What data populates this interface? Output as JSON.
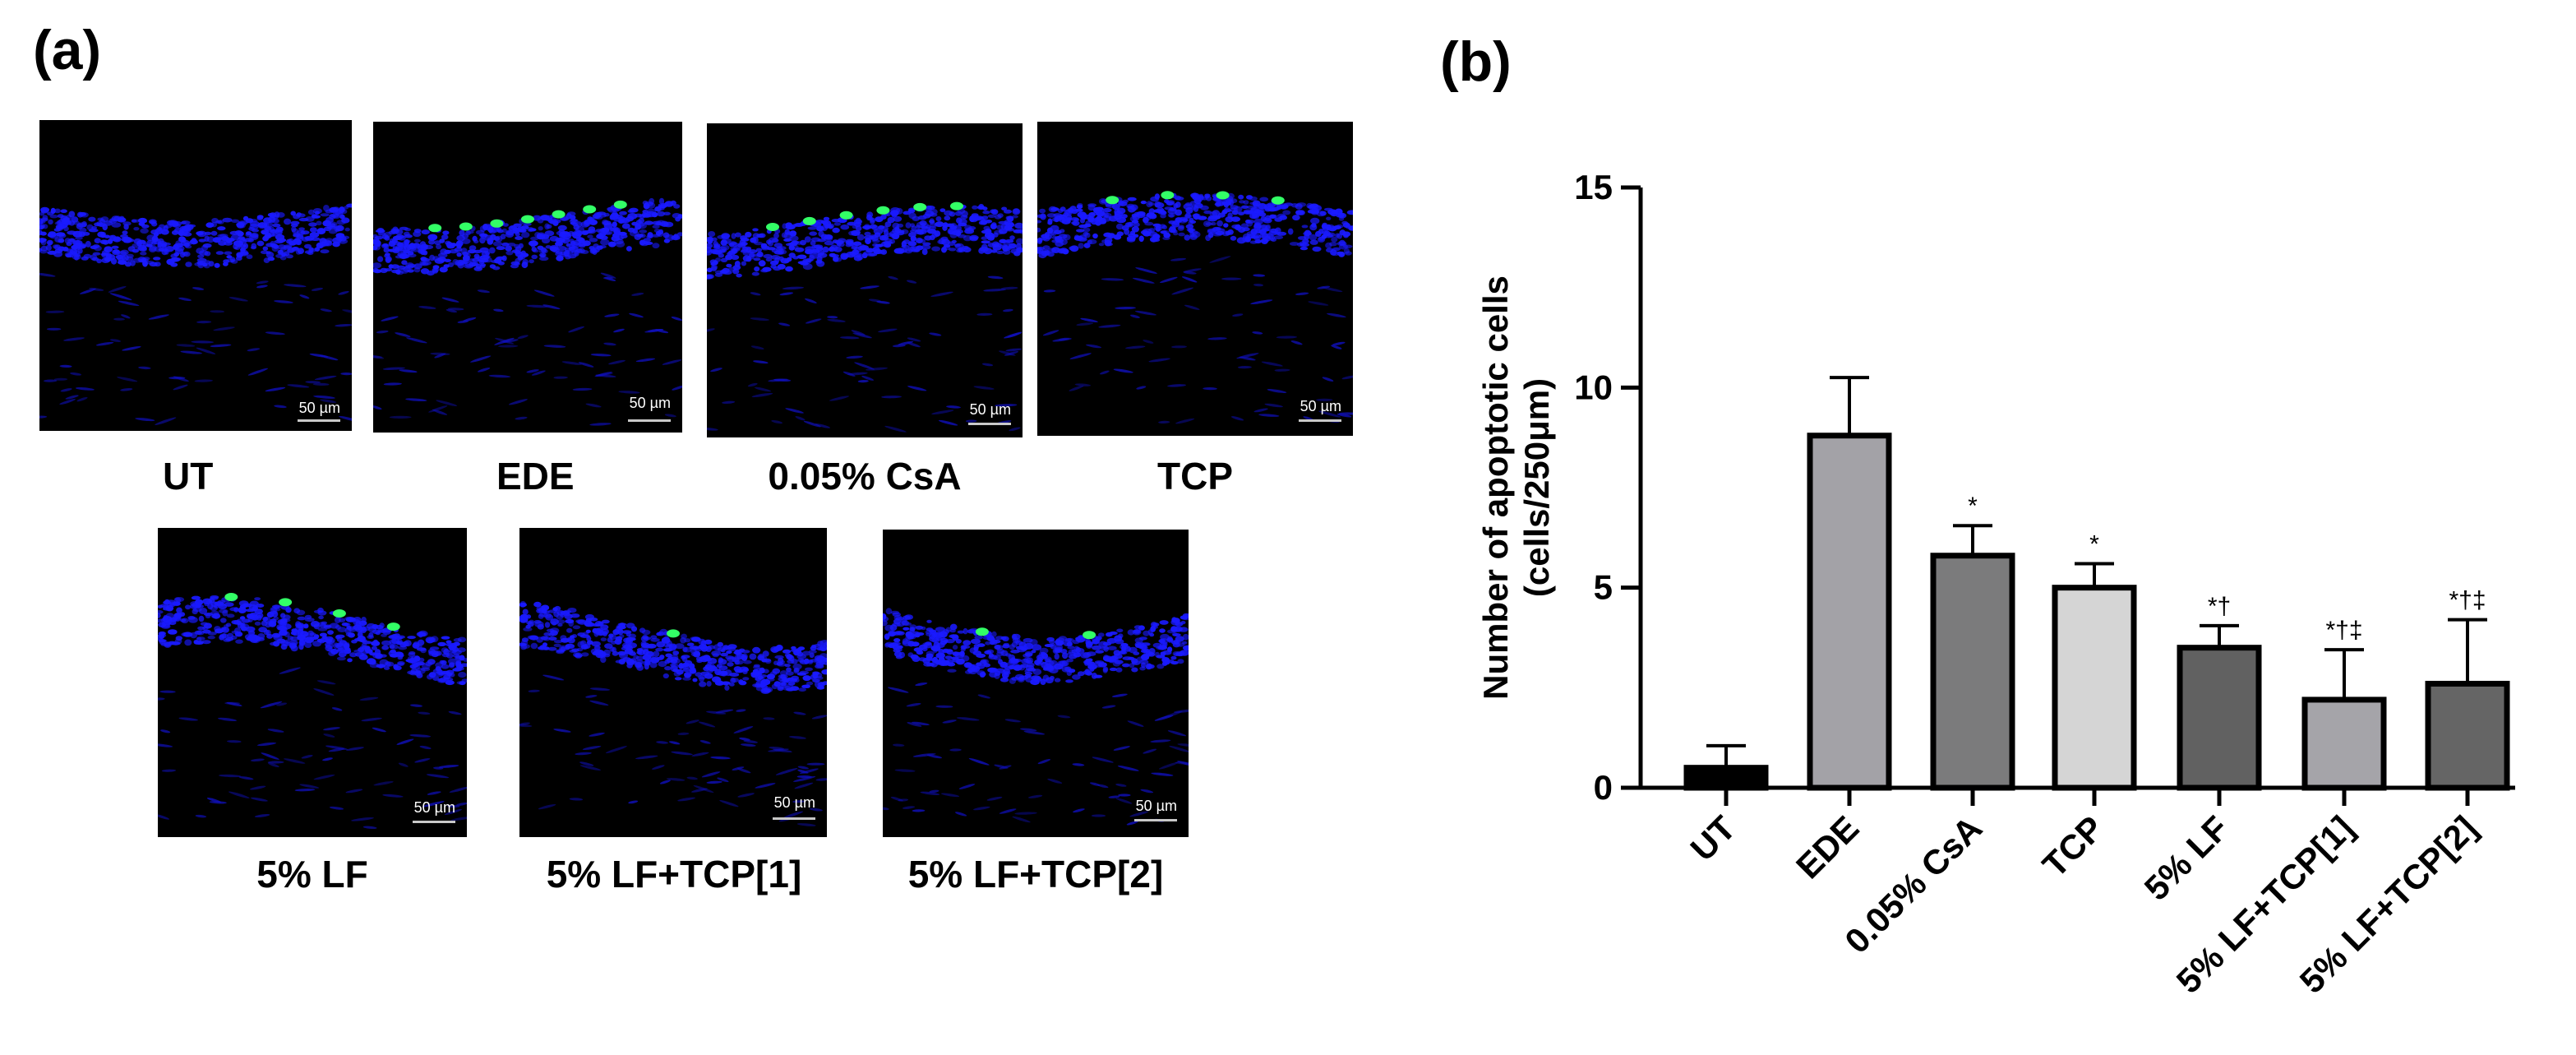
{
  "panel_a_label": "(a)",
  "panel_b_label": "(b)",
  "images": [
    {
      "label": "UT",
      "scale": "50 µm",
      "green_cells": 0
    },
    {
      "label": "EDE",
      "scale": "50 µm",
      "green_cells": 7
    },
    {
      "label": "0.05% CsA",
      "scale": "50 µm",
      "green_cells": 6
    },
    {
      "label": "TCP",
      "scale": "50 µm",
      "green_cells": 4
    },
    {
      "label": "5% LF",
      "scale": "50 µm",
      "green_cells": 4
    },
    {
      "label": "5% LF+TCP[1]",
      "scale": "50 µm",
      "green_cells": 1
    },
    {
      "label": "5% LF+TCP[2]",
      "scale": "50 µm",
      "green_cells": 2
    }
  ],
  "colors": {
    "nuclei": "#1a1aff",
    "apoptotic": "#33ff66",
    "background": "#000000"
  },
  "chart_data": {
    "type": "bar",
    "ylabel_line1": "Number of apoptotic cells",
    "ylabel_line2": "(cells/250μm)",
    "ylim": [
      0,
      15
    ],
    "yticks": [
      0,
      5,
      10,
      15
    ],
    "categories": [
      "UT",
      "EDE",
      "0.05% CsA",
      "TCP",
      "5% LF",
      "5% LF+TCP[1]",
      "5% LF+TCP[2]"
    ],
    "values": [
      0.5,
      8.8,
      5.8,
      5.0,
      3.5,
      2.2,
      2.6
    ],
    "errors": [
      0.55,
      1.45,
      0.75,
      0.6,
      0.55,
      1.25,
      1.6
    ],
    "significance": [
      "",
      "",
      "*",
      "*",
      "*†",
      "*†‡",
      "*†‡"
    ],
    "bar_colors": [
      "#000000",
      "#a3a2a7",
      "#7b7b7c",
      "#d5d5d5",
      "#616161",
      "#a5a4a9",
      "#656565"
    ]
  }
}
